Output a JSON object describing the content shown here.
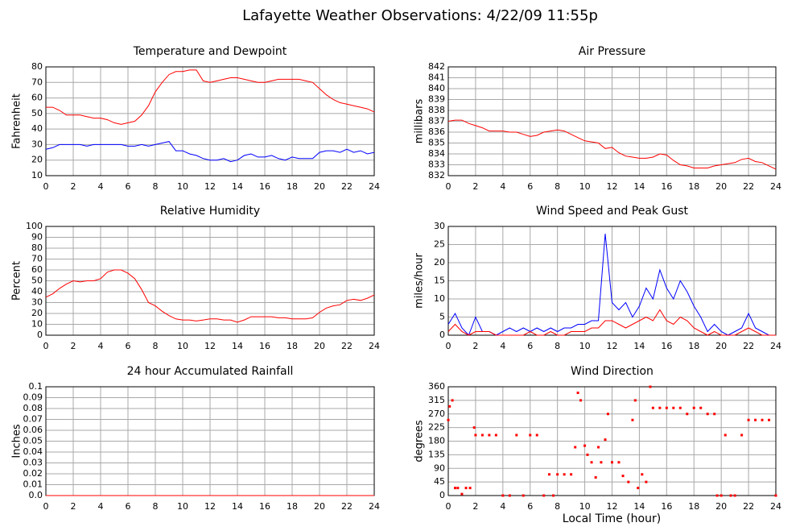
{
  "title": "Lafayette Weather Observations: 4/22/09 11:55p",
  "xlabel": "Local Time (hour)",
  "chart_data": [
    {
      "type": "line",
      "title": "Temperature and Dewpoint",
      "ylabel": "Fahrenheit",
      "x": [
        0,
        0.5,
        1,
        1.5,
        2,
        2.5,
        3,
        3.5,
        4,
        4.5,
        5,
        5.5,
        6,
        6.5,
        7,
        7.5,
        8,
        8.5,
        9,
        9.5,
        10,
        10.5,
        11,
        11.5,
        12,
        12.5,
        13,
        13.5,
        14,
        14.5,
        15,
        15.5,
        16,
        16.5,
        17,
        17.5,
        18,
        18.5,
        19,
        19.5,
        20,
        20.5,
        21,
        21.5,
        22,
        22.5,
        23,
        23.5,
        24
      ],
      "series": [
        {
          "color": "#ff0000",
          "values": [
            54,
            54,
            52,
            49,
            49,
            49,
            48,
            47,
            47,
            46,
            44,
            43,
            44,
            45,
            49,
            55,
            64,
            70,
            75,
            77,
            77,
            78,
            78,
            71,
            70,
            71,
            72,
            73,
            73,
            72,
            71,
            70,
            70,
            71,
            72,
            72,
            72,
            72,
            71,
            70,
            66,
            62,
            59,
            57,
            56,
            55,
            54,
            53,
            51
          ]
        },
        {
          "color": "#0000ff",
          "values": [
            27,
            28,
            30,
            30,
            30,
            30,
            29,
            30,
            30,
            30,
            30,
            30,
            29,
            29,
            30,
            29,
            30,
            31,
            32,
            26,
            26,
            24,
            23,
            21,
            20,
            20,
            21,
            19,
            20,
            23,
            24,
            22,
            22,
            23,
            21,
            20,
            22,
            21,
            21,
            21,
            25,
            26,
            26,
            25,
            27,
            25,
            26,
            24,
            25
          ]
        }
      ],
      "xlim": [
        0,
        24
      ],
      "xticks": [
        0,
        2,
        4,
        6,
        8,
        10,
        12,
        14,
        16,
        18,
        20,
        22,
        24
      ],
      "ylim": [
        10,
        80
      ],
      "yticks": [
        10,
        20,
        30,
        40,
        50,
        60,
        70,
        80
      ],
      "grid": true
    },
    {
      "type": "line",
      "title": "Air Pressure",
      "ylabel": "millibars",
      "x": [
        0,
        0.5,
        1,
        1.5,
        2,
        2.5,
        3,
        3.5,
        4,
        4.5,
        5,
        5.5,
        6,
        6.5,
        7,
        7.5,
        8,
        8.5,
        9,
        9.5,
        10,
        10.5,
        11,
        11.5,
        12,
        12.5,
        13,
        13.5,
        14,
        14.5,
        15,
        15.5,
        16,
        16.5,
        17,
        17.5,
        18,
        18.5,
        19,
        19.5,
        20,
        20.5,
        21,
        21.5,
        22,
        22.5,
        23,
        23.5,
        24
      ],
      "series": [
        {
          "color": "#ff0000",
          "values": [
            837.0,
            837.1,
            837.1,
            836.8,
            836.6,
            836.4,
            836.1,
            836.1,
            836.1,
            836.0,
            836.0,
            835.8,
            835.6,
            835.7,
            836.0,
            836.1,
            836.2,
            836.1,
            835.8,
            835.5,
            835.2,
            835.1,
            835.0,
            834.5,
            834.6,
            834.1,
            833.8,
            833.7,
            833.6,
            833.6,
            833.7,
            834.0,
            833.9,
            833.4,
            833.0,
            832.9,
            832.7,
            832.7,
            832.7,
            832.9,
            833.0,
            833.1,
            833.2,
            833.5,
            833.6,
            833.3,
            833.2,
            832.9,
            832.6
          ]
        }
      ],
      "xlim": [
        0,
        24
      ],
      "xticks": [
        0,
        2,
        4,
        6,
        8,
        10,
        12,
        14,
        16,
        18,
        20,
        22,
        24
      ],
      "ylim": [
        832,
        842
      ],
      "yticks": [
        832,
        833,
        834,
        835,
        836,
        837,
        838,
        839,
        840,
        841,
        842
      ],
      "grid": true
    },
    {
      "type": "line",
      "title": "Relative Humidity",
      "ylabel": "Percent",
      "x": [
        0,
        0.5,
        1,
        1.5,
        2,
        2.5,
        3,
        3.5,
        4,
        4.5,
        5,
        5.5,
        6,
        6.5,
        7,
        7.5,
        8,
        8.5,
        9,
        9.5,
        10,
        10.5,
        11,
        11.5,
        12,
        12.5,
        13,
        13.5,
        14,
        14.5,
        15,
        15.5,
        16,
        16.5,
        17,
        17.5,
        18,
        18.5,
        19,
        19.5,
        20,
        20.5,
        21,
        21.5,
        22,
        22.5,
        23,
        23.5,
        24
      ],
      "series": [
        {
          "color": "#ff0000",
          "values": [
            35,
            38,
            43,
            47,
            50,
            49,
            50,
            50,
            52,
            58,
            60,
            60,
            57,
            52,
            42,
            30,
            27,
            22,
            18,
            15,
            14,
            14,
            13,
            14,
            15,
            15,
            14,
            14,
            12,
            14,
            17,
            17,
            17,
            17,
            16,
            16,
            15,
            15,
            15,
            16,
            21,
            25,
            27,
            28,
            32,
            33,
            32,
            34,
            37
          ]
        }
      ],
      "xlim": [
        0,
        24
      ],
      "xticks": [
        0,
        2,
        4,
        6,
        8,
        10,
        12,
        14,
        16,
        18,
        20,
        22,
        24
      ],
      "ylim": [
        0,
        100
      ],
      "yticks": [
        0,
        10,
        20,
        30,
        40,
        50,
        60,
        70,
        80,
        90,
        100
      ],
      "grid": true
    },
    {
      "type": "line",
      "title": "Wind Speed and Peak Gust",
      "ylabel": "miles/hour",
      "x": [
        0,
        0.5,
        1,
        1.5,
        2,
        2.5,
        3,
        3.5,
        4,
        4.5,
        5,
        5.5,
        6,
        6.5,
        7,
        7.5,
        8,
        8.5,
        9,
        9.5,
        10,
        10.5,
        11,
        11.5,
        12,
        12.5,
        13,
        13.5,
        14,
        14.5,
        15,
        15.5,
        16,
        16.5,
        17,
        17.5,
        18,
        18.5,
        19,
        19.5,
        20,
        20.5,
        21,
        21.5,
        22,
        22.5,
        23,
        23.5,
        24
      ],
      "series": [
        {
          "color": "#0000ff",
          "values": [
            3,
            6,
            2,
            0,
            5,
            1,
            1,
            0,
            1,
            2,
            1,
            2,
            1,
            2,
            1,
            2,
            1,
            2,
            2,
            3,
            3,
            4,
            4,
            28,
            9,
            7,
            9,
            5,
            8,
            13,
            10,
            18,
            13,
            10,
            15,
            12,
            8,
            5,
            1,
            3,
            1,
            0,
            1,
            2,
            6,
            2,
            1,
            0,
            0
          ]
        },
        {
          "color": "#ff0000",
          "values": [
            1,
            3,
            1,
            0,
            1,
            1,
            1,
            0,
            0,
            0,
            0,
            0,
            1,
            0,
            0,
            1,
            0,
            0,
            1,
            1,
            1,
            2,
            2,
            4,
            4,
            3,
            2,
            3,
            4,
            5,
            4,
            7,
            4,
            3,
            5,
            4,
            2,
            1,
            0,
            1,
            0,
            0,
            0,
            1,
            2,
            1,
            0,
            0,
            0
          ]
        }
      ],
      "xlim": [
        0,
        24
      ],
      "xticks": [
        0,
        2,
        4,
        6,
        8,
        10,
        12,
        14,
        16,
        18,
        20,
        22,
        24
      ],
      "ylim": [
        0,
        30
      ],
      "yticks": [
        0,
        5,
        10,
        15,
        20,
        25,
        30
      ],
      "grid": true
    },
    {
      "type": "line",
      "title": "24 hour Accumulated Rainfall",
      "ylabel": "Inches",
      "x": [
        0,
        24
      ],
      "series": [
        {
          "color": "#ff0000",
          "values": [
            0,
            0
          ]
        }
      ],
      "xlim": [
        0,
        24
      ],
      "xticks": [
        0,
        2,
        4,
        6,
        8,
        10,
        12,
        14,
        16,
        18,
        20,
        22,
        24
      ],
      "ylim": [
        0,
        0.1
      ],
      "yticks": [
        {
          "value": 0,
          "label": "0.0"
        },
        0.01,
        0.02,
        0.03,
        0.04,
        0.05,
        0.06,
        0.07,
        0.08,
        0.09,
        0.1
      ],
      "grid": true
    },
    {
      "type": "scatter",
      "title": "Wind Direction",
      "ylabel": "degrees",
      "x": [
        0,
        0.1,
        0.3,
        0.5,
        0.7,
        1,
        1.3,
        1.6,
        1.9,
        2,
        2.5,
        3,
        3.5,
        4,
        4.5,
        5,
        5.5,
        6,
        6.5,
        7,
        7.4,
        7.7,
        8,
        8.5,
        9,
        9.3,
        9.5,
        9.7,
        10,
        10.2,
        10.5,
        10.8,
        11,
        11.2,
        11.5,
        11.7,
        12,
        12.5,
        12.8,
        13.2,
        13.5,
        13.7,
        13.9,
        14.2,
        14.5,
        14.8,
        15,
        15.5,
        16,
        16.5,
        17,
        17.5,
        18,
        18.5,
        19,
        19.5,
        19.7,
        20,
        20.3,
        20.7,
        21,
        21.5,
        22,
        22.5,
        23,
        23.5,
        24
      ],
      "series": [
        {
          "color": "#ff0000",
          "values": [
            250,
            295,
            315,
            25,
            25,
            5,
            25,
            25,
            225,
            200,
            200,
            200,
            200,
            0,
            0,
            200,
            0,
            200,
            200,
            0,
            70,
            0,
            70,
            70,
            70,
            160,
            340,
            315,
            165,
            135,
            110,
            60,
            160,
            110,
            185,
            270,
            110,
            110,
            65,
            45,
            250,
            315,
            25,
            70,
            45,
            360,
            290,
            290,
            290,
            290,
            290,
            270,
            290,
            290,
            270,
            270,
            0,
            0,
            200,
            0,
            0,
            200,
            250,
            250,
            250,
            250,
            0
          ]
        }
      ],
      "xlim": [
        0,
        24
      ],
      "xticks": [
        0,
        2,
        4,
        6,
        8,
        10,
        12,
        14,
        16,
        18,
        20,
        22,
        24
      ],
      "ylim": [
        0,
        360
      ],
      "yticks": [
        0,
        45,
        90,
        135,
        180,
        225,
        270,
        315,
        360
      ],
      "grid": true
    }
  ]
}
